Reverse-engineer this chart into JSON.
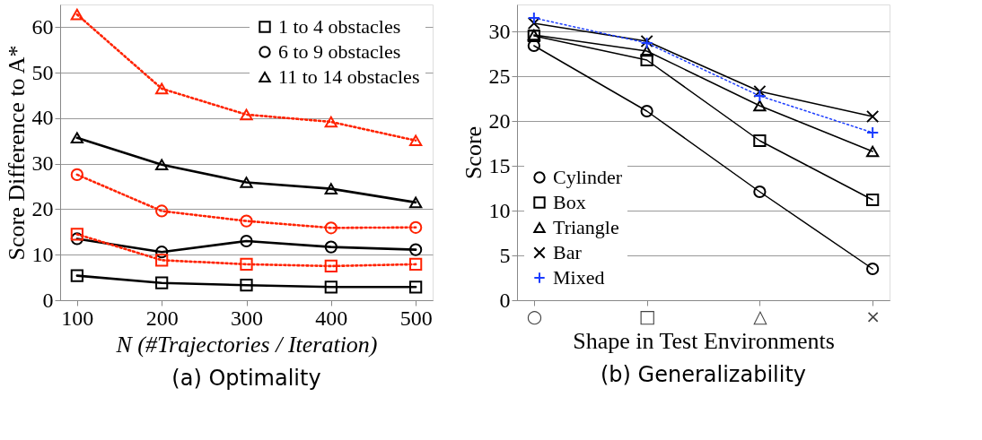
{
  "chart_data": [
    {
      "type": "line",
      "title": "(a) Optimality",
      "xlabel": "N (#Trajectories / Iteration)",
      "ylabel": "Score Difference to A*",
      "x": [
        100,
        200,
        300,
        400,
        500
      ],
      "xlim": [
        80,
        520
      ],
      "xticks": [
        100,
        200,
        300,
        400,
        500
      ],
      "ylim": [
        0,
        65
      ],
      "yticks": [
        0,
        10,
        20,
        30,
        40,
        50,
        60
      ],
      "grid": "y",
      "legend": "top right",
      "series": [
        {
          "name": "1 to 4 obstacles",
          "color": "#000000",
          "marker": "square",
          "line_style": "solid",
          "values": [
            5.4,
            3.8,
            3.3,
            2.9,
            2.9
          ]
        },
        {
          "name": "6 to 9 obstacles",
          "color": "#000000",
          "marker": "circle",
          "line_style": "solid",
          "values": [
            13.5,
            10.6,
            13.0,
            11.7,
            11.1
          ]
        },
        {
          "name": "11 to 14 obstacles",
          "color": "#000000",
          "marker": "triangle",
          "line_style": "solid",
          "values": [
            35.7,
            29.8,
            25.9,
            24.5,
            21.5
          ]
        },
        {
          "color": "#ff2200",
          "marker": "square",
          "line_style": "dotted",
          "values": [
            14.5,
            8.8,
            7.9,
            7.5,
            7.9
          ]
        },
        {
          "color": "#ff2200",
          "marker": "circle",
          "line_style": "dotted",
          "values": [
            27.6,
            19.6,
            17.4,
            15.9,
            16.0
          ]
        },
        {
          "color": "#ff2200",
          "marker": "triangle",
          "line_style": "dotted",
          "values": [
            62.8,
            46.5,
            40.8,
            39.2,
            35.1
          ]
        }
      ]
    },
    {
      "type": "line",
      "title": "(b) Generalizability",
      "xlabel": "Shape in Test Environments",
      "ylabel": "Score",
      "categories": [
        "○",
        "□",
        "△",
        "×"
      ],
      "ylim": [
        0,
        33
      ],
      "yticks": [
        0,
        5,
        10,
        15,
        20,
        25,
        30
      ],
      "grid": "y",
      "legend": "bottom left",
      "series": [
        {
          "name": "Cylinder",
          "color": "#000000",
          "marker": "circle",
          "line_style": "solid",
          "values": [
            28.4,
            21.1,
            12.1,
            3.5
          ]
        },
        {
          "name": "Box",
          "color": "#000000",
          "marker": "square",
          "line_style": "solid",
          "values": [
            29.5,
            26.8,
            17.8,
            11.2
          ]
        },
        {
          "name": "Triangle",
          "color": "#000000",
          "marker": "triangle",
          "line_style": "solid",
          "values": [
            29.6,
            27.8,
            21.7,
            16.6
          ]
        },
        {
          "name": "Bar",
          "color": "#000000",
          "marker": "cross",
          "line_style": "solid",
          "values": [
            30.9,
            28.9,
            23.3,
            20.5
          ]
        },
        {
          "name": "Mixed",
          "color": "#1a3cff",
          "marker": "plus",
          "line_style": "dotted",
          "values": [
            31.5,
            28.7,
            22.8,
            18.7
          ]
        }
      ]
    }
  ]
}
